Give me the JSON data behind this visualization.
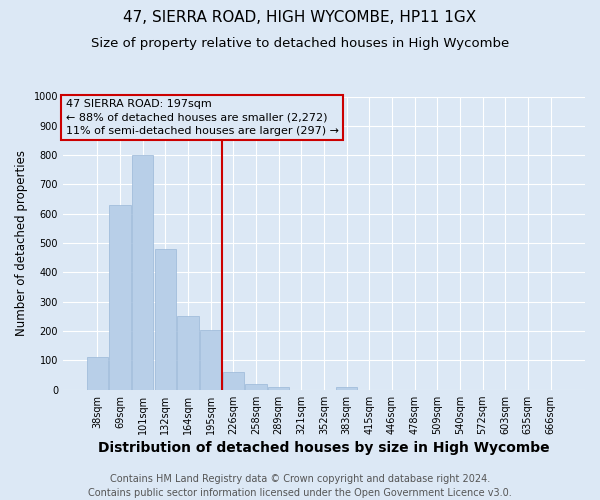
{
  "title": "47, SIERRA ROAD, HIGH WYCOMBE, HP11 1GX",
  "subtitle": "Size of property relative to detached houses in High Wycombe",
  "xlabel": "Distribution of detached houses by size in High Wycombe",
  "ylabel": "Number of detached properties",
  "footer_line1": "Contains HM Land Registry data © Crown copyright and database right 2024.",
  "footer_line2": "Contains public sector information licensed under the Open Government Licence v3.0.",
  "annotation_line1": "47 SIERRA ROAD: 197sqm",
  "annotation_line2": "← 88% of detached houses are smaller (2,272)",
  "annotation_line3": "11% of semi-detached houses are larger (297) →",
  "bar_labels": [
    "38sqm",
    "69sqm",
    "101sqm",
    "132sqm",
    "164sqm",
    "195sqm",
    "226sqm",
    "258sqm",
    "289sqm",
    "321sqm",
    "352sqm",
    "383sqm",
    "415sqm",
    "446sqm",
    "478sqm",
    "509sqm",
    "540sqm",
    "572sqm",
    "603sqm",
    "635sqm",
    "666sqm"
  ],
  "bar_values": [
    110,
    630,
    800,
    480,
    250,
    205,
    60,
    20,
    10,
    0,
    0,
    10,
    0,
    0,
    0,
    0,
    0,
    0,
    0,
    0,
    0
  ],
  "bar_color": "#b8cfe8",
  "bar_edge_color": "#9ab8d8",
  "vline_x_index": 5,
  "vline_color": "#cc0000",
  "ylim": [
    0,
    1000
  ],
  "yticks": [
    0,
    100,
    200,
    300,
    400,
    500,
    600,
    700,
    800,
    900,
    1000
  ],
  "bg_color": "#dce8f5",
  "plot_bg_color": "#dce8f5",
  "grid_color": "#ffffff",
  "annotation_box_color": "#cc0000",
  "title_fontsize": 11,
  "subtitle_fontsize": 9.5,
  "xlabel_fontsize": 10,
  "ylabel_fontsize": 8.5,
  "tick_fontsize": 7,
  "footer_fontsize": 7,
  "annotation_fontsize": 8
}
